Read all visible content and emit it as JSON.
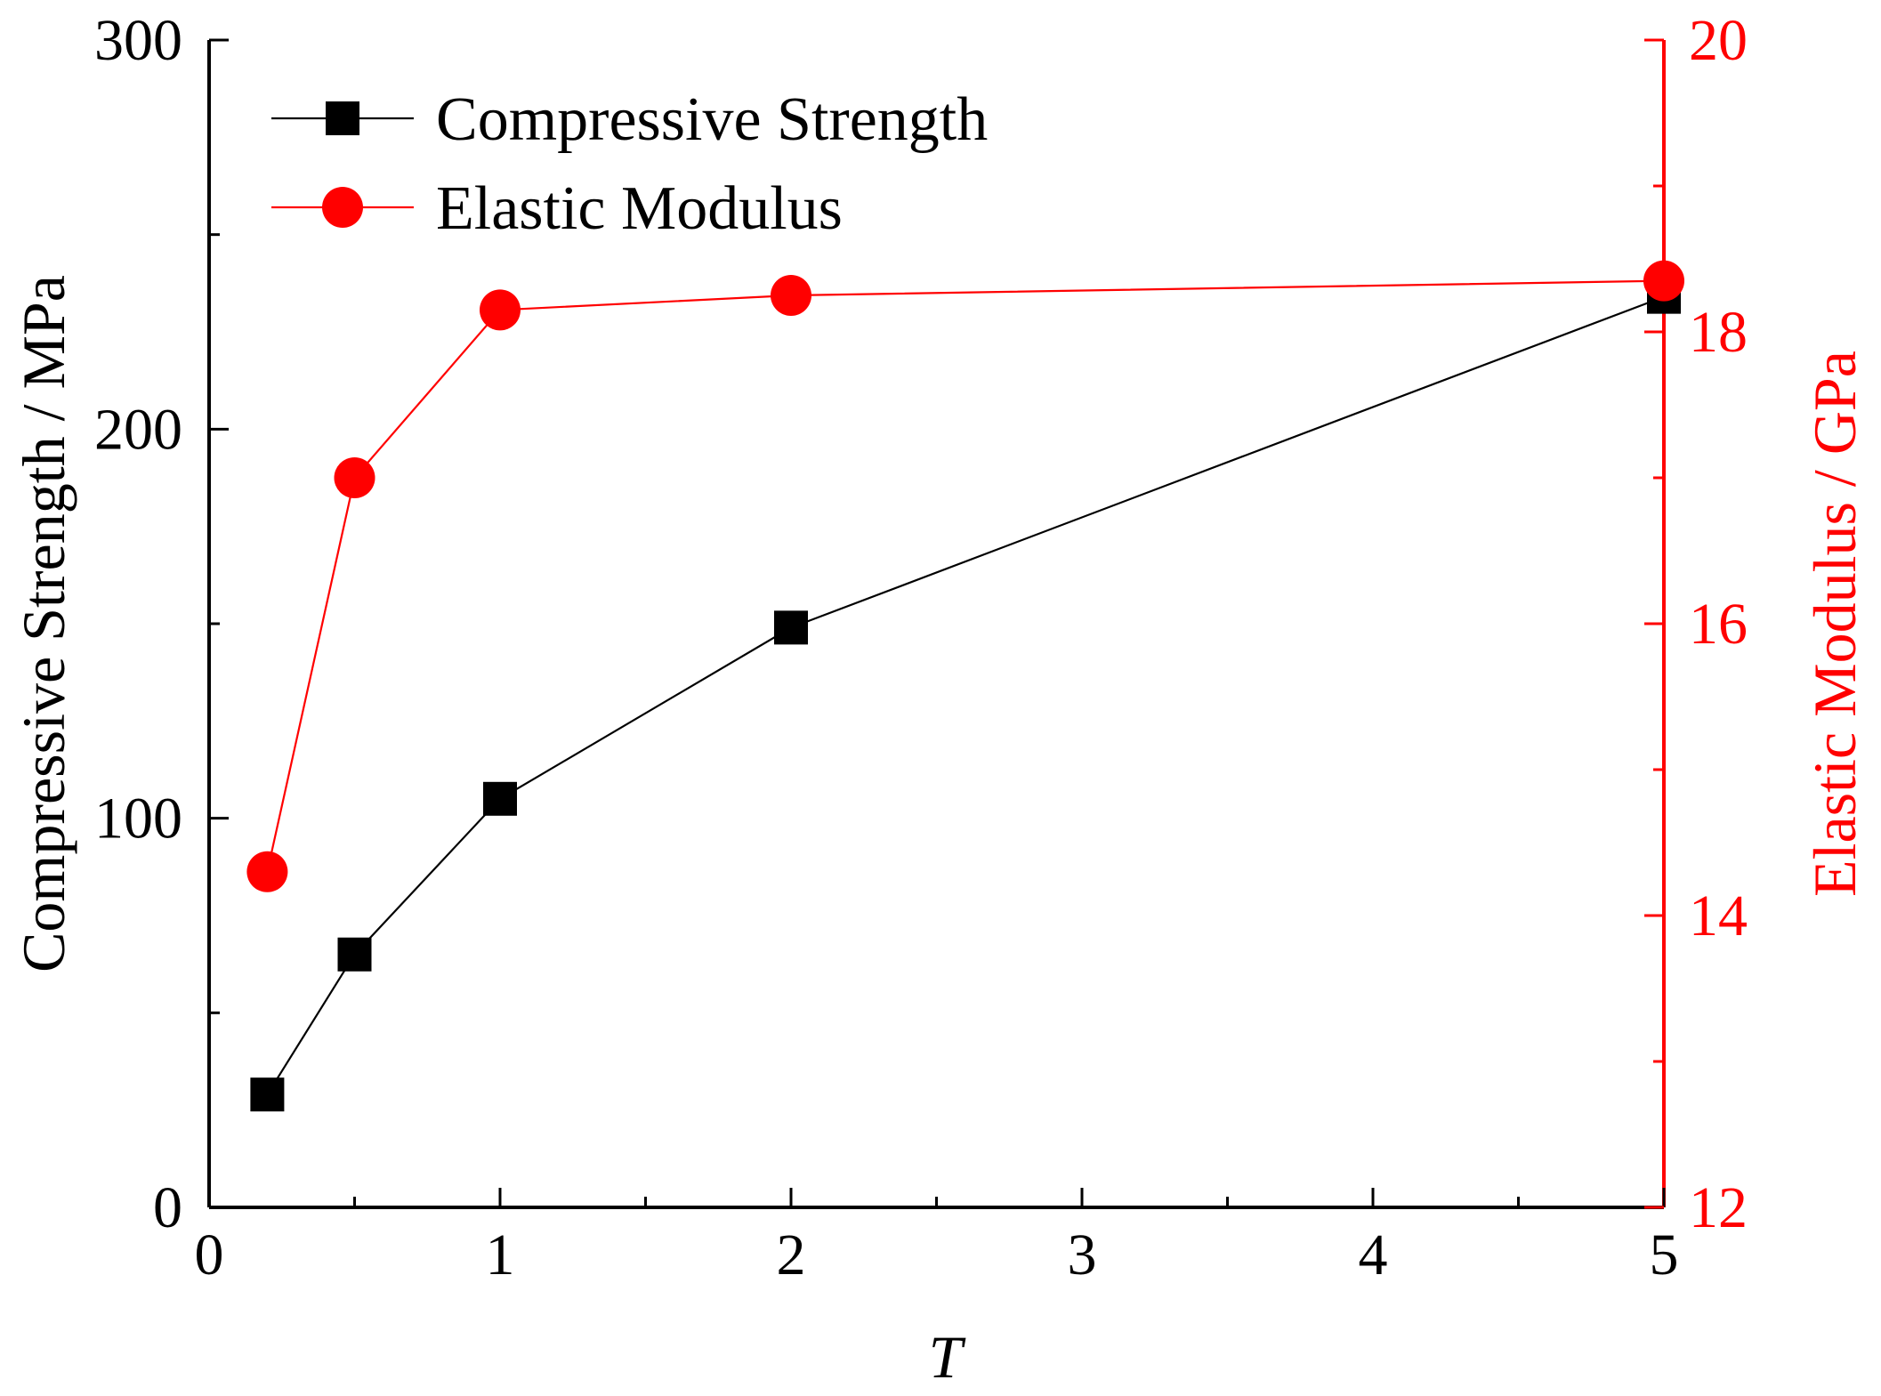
{
  "chart_data": {
    "type": "line",
    "xlabel": "T",
    "ylabel_left": "Compressive Strength / MPa",
    "ylabel_right": "Elastic Modulus / GPa",
    "xlim": [
      0,
      5
    ],
    "ylim_left": [
      0,
      300
    ],
    "ylim_right": [
      12,
      20
    ],
    "x_ticks": [
      "0",
      "1",
      "2",
      "3",
      "4",
      "5"
    ],
    "y_left_ticks": [
      "0",
      "100",
      "200",
      "300"
    ],
    "y_right_ticks": [
      "12",
      "14",
      "16",
      "18",
      "20"
    ],
    "legend_position": "top-left",
    "grid": false,
    "series": [
      {
        "name": "Compressive Strength",
        "axis": "left",
        "marker": "square",
        "color": "#000000",
        "x": [
          0.2,
          0.5,
          1,
          2,
          5
        ],
        "y": [
          29,
          65,
          105,
          149,
          234
        ]
      },
      {
        "name": "Elastic Modulus",
        "axis": "right",
        "marker": "circle",
        "color": "#ff0000",
        "x": [
          0.2,
          0.5,
          1,
          2,
          5
        ],
        "y": [
          14.3,
          17.0,
          18.15,
          18.25,
          18.35
        ]
      }
    ]
  }
}
